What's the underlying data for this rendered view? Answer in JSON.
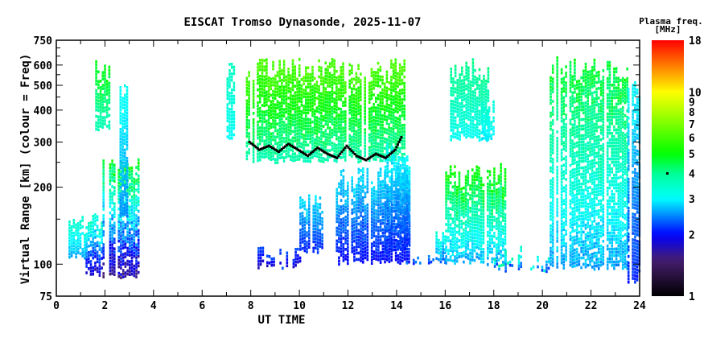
{
  "chart_data": {
    "type": "heatmap",
    "title": "EISCAT Tromso Dynasonde, 2025-11-07",
    "xlabel": "UT TIME",
    "ylabel": "Virtual Range [km] (colour = Freq)",
    "xlim": [
      0,
      24
    ],
    "ylim": [
      75,
      750
    ],
    "yscale": "log",
    "x_ticks": [
      "0",
      "2",
      "4",
      "6",
      "8",
      "10",
      "12",
      "14",
      "16",
      "18",
      "20",
      "22",
      "24"
    ],
    "y_ticks": [
      "75",
      "100",
      "200",
      "300",
      "400",
      "500",
      "600",
      "750"
    ],
    "colorbar": {
      "title_line1": "Plasma freq.",
      "title_line2": "[MHz]",
      "range": [
        1,
        18
      ],
      "scale": "log",
      "ticks": [
        "1",
        "2",
        "3",
        "4",
        "5",
        "6",
        "7",
        "8",
        "9",
        "10",
        "18"
      ],
      "marker_value": 4
    },
    "echo_regions": [
      {
        "t": [
          0.5,
          1.2
        ],
        "range": [
          105,
          160
        ],
        "freq": [
          2.5,
          3.6
        ]
      },
      {
        "t": [
          1.2,
          1.9
        ],
        "range": [
          90,
          170
        ],
        "freq": [
          1.6,
          3.8
        ]
      },
      {
        "t": [
          1.6,
          2.2
        ],
        "range": [
          330,
          640
        ],
        "freq": [
          3.5,
          5.0
        ]
      },
      {
        "t": [
          1.9,
          3.4
        ],
        "range": [
          88,
          280
        ],
        "freq": [
          1.4,
          5.5
        ]
      },
      {
        "t": [
          2.6,
          2.9
        ],
        "range": [
          150,
          560
        ],
        "freq": [
          2.4,
          3.2
        ]
      },
      {
        "t": [
          7.0,
          7.3
        ],
        "range": [
          300,
          640
        ],
        "freq": [
          3.0,
          3.6
        ]
      },
      {
        "t": [
          7.8,
          14.3
        ],
        "range": [
          250,
          640
        ],
        "freq": [
          3.5,
          6.5
        ]
      },
      {
        "t": [
          8.1,
          10.0
        ],
        "range": [
          97,
          118
        ],
        "freq": [
          1.7,
          2.3
        ]
      },
      {
        "t": [
          10.0,
          11.0
        ],
        "range": [
          110,
          200
        ],
        "freq": [
          2.0,
          3.0
        ]
      },
      {
        "t": [
          11.5,
          14.5
        ],
        "range": [
          100,
          240
        ],
        "freq": [
          1.9,
          3.0
        ]
      },
      {
        "t": [
          13.5,
          14.5
        ],
        "range": [
          110,
          300
        ],
        "freq": [
          2.0,
          3.2
        ]
      },
      {
        "t": [
          14.3,
          15.6
        ],
        "range": [
          100,
          112
        ],
        "freq": [
          2.0,
          2.5
        ]
      },
      {
        "t": [
          15.6,
          16.0
        ],
        "range": [
          100,
          140
        ],
        "freq": [
          2.2,
          3.5
        ]
      },
      {
        "t": [
          16.0,
          18.5
        ],
        "range": [
          100,
          250
        ],
        "freq": [
          2.4,
          5.5
        ]
      },
      {
        "t": [
          16.2,
          17.8
        ],
        "range": [
          300,
          640
        ],
        "freq": [
          3.0,
          4.2
        ]
      },
      {
        "t": [
          17.5,
          18.0
        ],
        "range": [
          300,
          450
        ],
        "freq": [
          2.8,
          3.5
        ]
      },
      {
        "t": [
          18.0,
          19.2
        ],
        "range": [
          95,
          120
        ],
        "freq": [
          2.0,
          4.0
        ]
      },
      {
        "t": [
          19.5,
          20.3
        ],
        "range": [
          93,
          110
        ],
        "freq": [
          2.0,
          3.5
        ]
      },
      {
        "t": [
          20.3,
          23.5
        ],
        "range": [
          95,
          650
        ],
        "freq": [
          2.4,
          5.0
        ]
      },
      {
        "t": [
          23.5,
          24.0
        ],
        "range": [
          85,
          560
        ],
        "freq": [
          2.0,
          3.2
        ]
      }
    ],
    "peak_trace": {
      "t": [
        7.9,
        8.3,
        8.7,
        9.1,
        9.5,
        9.9,
        10.3,
        10.7,
        11.1,
        11.5,
        11.9,
        12.3,
        12.7,
        13.1,
        13.5,
        13.9,
        14.2
      ],
      "range": [
        300,
        280,
        290,
        275,
        295,
        280,
        265,
        285,
        270,
        260,
        290,
        265,
        255,
        270,
        260,
        280,
        320
      ]
    }
  }
}
